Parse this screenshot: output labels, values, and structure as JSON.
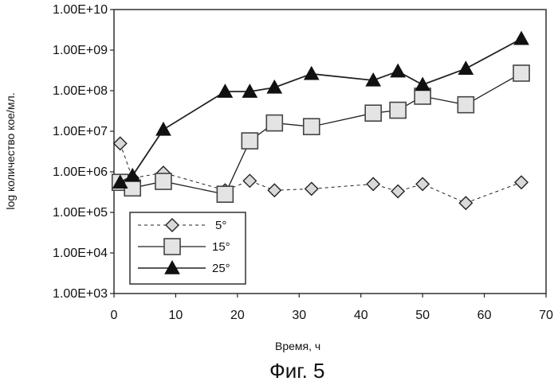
{
  "chart_data": {
    "type": "line",
    "title": "",
    "xlabel": "Время, ч",
    "ylabel": "log количество кое/мл.",
    "xlim": [
      0,
      70
    ],
    "ylim_log10": [
      3,
      10
    ],
    "y_scale": "log",
    "x_ticks": [
      "0",
      "10",
      "20",
      "30",
      "40",
      "50",
      "60",
      "70"
    ],
    "y_ticks": [
      "1.00E+03",
      "1.00E+04",
      "1.00E+05",
      "1.00E+06",
      "1.00E+07",
      "1.00E+08",
      "1.00E+09",
      "1.00E+10"
    ],
    "grid": false,
    "legend_position": "lower-left",
    "series": [
      {
        "name": "5°",
        "marker": "diamond",
        "line_style": "dashed",
        "x": [
          1,
          3,
          8,
          18,
          22,
          26,
          32,
          42,
          46,
          50,
          57,
          66
        ],
        "y": [
          5000000,
          700000,
          950000,
          350000,
          600000,
          350000,
          380000,
          500000,
          330000,
          500000,
          170000,
          550000
        ]
      },
      {
        "name": "15°",
        "marker": "square",
        "line_style": "solid",
        "x": [
          1,
          3,
          8,
          18,
          22,
          26,
          32,
          42,
          46,
          50,
          57,
          66
        ],
        "y": [
          550000,
          400000,
          580000,
          280000,
          5800000,
          16000000,
          13000000,
          28000000,
          33000000,
          73000000,
          45000000,
          270000000
        ]
      },
      {
        "name": "25°",
        "marker": "triangle",
        "line_style": "solid",
        "x": [
          1,
          3,
          8,
          18,
          22,
          26,
          32,
          42,
          46,
          50,
          57,
          66
        ],
        "y": [
          550000,
          800000,
          11000000,
          95000000,
          95000000,
          120000000,
          260000000,
          180000000,
          300000000,
          140000000,
          350000000,
          1900000000
        ]
      }
    ]
  },
  "caption": "Фиг. 5"
}
